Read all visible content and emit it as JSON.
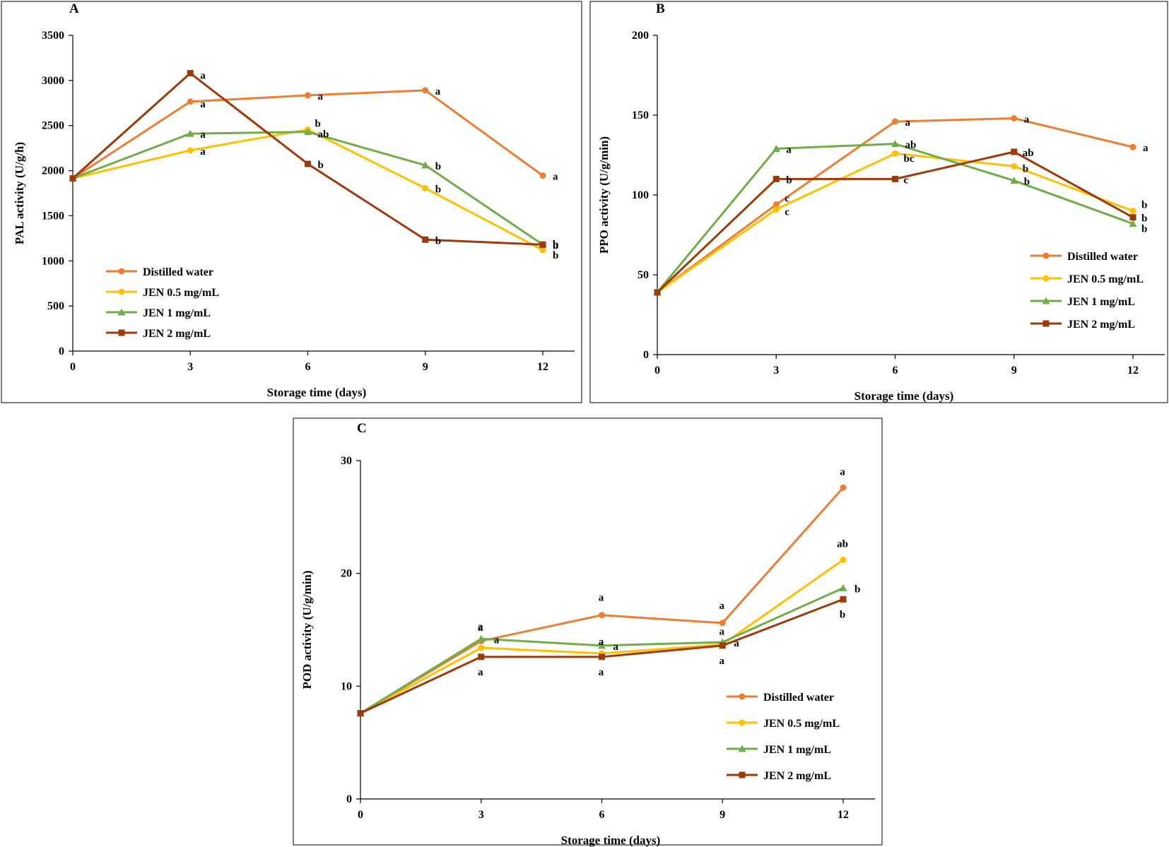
{
  "series_styles": [
    {
      "name": "Distilled water",
      "color": "#ED7D31",
      "marker": "circle"
    },
    {
      "name": "JEN 0.5 mg/mL",
      "color": "#FFC000",
      "marker": "circle"
    },
    {
      "name": "JEN 1 mg/mL",
      "color": "#70AD47",
      "marker": "triangle"
    },
    {
      "name": "JEN 2 mg/mL",
      "color": "#9E3A0A",
      "marker": "square"
    }
  ],
  "chart_data": [
    {
      "panel": "A",
      "type": "line",
      "xlabel": "Storage time (days)",
      "ylabel": "PAL activity (U/g/h)",
      "x": [
        0,
        3,
        6,
        9,
        12
      ],
      "xticks": [
        "0",
        "3",
        "6",
        "9",
        "12"
      ],
      "ylim": [
        0,
        3500
      ],
      "yticks": [
        "0",
        "500",
        "1000",
        "1500",
        "2000",
        "2500",
        "3000",
        "3500"
      ],
      "legend_position": "bottom-left",
      "series": [
        {
          "name": "Distilled water",
          "values": [
            1915,
            2765,
            2835,
            2890,
            1945
          ],
          "labels": [
            "",
            "a",
            "a",
            "a",
            "a"
          ]
        },
        {
          "name": "JEN 0.5 mg/mL",
          "values": [
            1915,
            2225,
            2455,
            1805,
            1120
          ],
          "labels": [
            "",
            "a",
            "b",
            "b",
            "b"
          ]
        },
        {
          "name": "JEN 1 mg/mL",
          "values": [
            1915,
            2410,
            2430,
            2060,
            1180
          ],
          "labels": [
            "",
            "a",
            "ab",
            "b",
            "b"
          ]
        },
        {
          "name": "JEN 2 mg/mL",
          "values": [
            1915,
            3080,
            2075,
            1235,
            1180
          ],
          "labels": [
            "",
            "a",
            "b",
            "b",
            "b"
          ]
        }
      ]
    },
    {
      "panel": "B",
      "type": "line",
      "xlabel": "Storage time (days)",
      "ylabel": "PPO activity (U/g/min)",
      "x": [
        0,
        3,
        6,
        9,
        12
      ],
      "xticks": [
        "0",
        "3",
        "6",
        "9",
        "12"
      ],
      "ylim": [
        0,
        200
      ],
      "yticks": [
        "0",
        "50",
        "100",
        "150",
        "200"
      ],
      "legend_position": "bottom-right",
      "series": [
        {
          "name": "Distilled water",
          "values": [
            39,
            94,
            146,
            148,
            130
          ],
          "labels": [
            "",
            "c",
            "a",
            "a",
            "a"
          ]
        },
        {
          "name": "JEN 0.5 mg/mL",
          "values": [
            39,
            91,
            126,
            118,
            90
          ],
          "labels": [
            "",
            "c",
            "bc",
            "b",
            "b"
          ]
        },
        {
          "name": "JEN 1 mg/mL",
          "values": [
            39,
            129,
            132,
            109,
            82
          ],
          "labels": [
            "",
            "a",
            "ab",
            "b",
            "b"
          ]
        },
        {
          "name": "JEN 2 mg/mL",
          "values": [
            39,
            110,
            110,
            127,
            86
          ],
          "labels": [
            "",
            "b",
            "c",
            "ab",
            "b"
          ]
        }
      ]
    },
    {
      "panel": "C",
      "type": "line",
      "xlabel": "Storage time (days)",
      "ylabel": "POD activity (U/g/min)",
      "x": [
        0,
        3,
        6,
        9,
        12
      ],
      "xticks": [
        "0",
        "3",
        "6",
        "9",
        "12"
      ],
      "ylim": [
        0,
        30
      ],
      "yticks": [
        "0",
        "10",
        "20",
        "30"
      ],
      "legend_position": "bottom-right",
      "series": [
        {
          "name": "Distilled water",
          "values": [
            7.6,
            14.0,
            16.3,
            15.6,
            27.6
          ],
          "labels": [
            "",
            "a",
            "a",
            "a",
            "a"
          ]
        },
        {
          "name": "JEN 0.5 mg/mL",
          "values": [
            7.6,
            13.4,
            12.9,
            13.7,
            21.2
          ],
          "labels": [
            "",
            "a",
            "a",
            "a",
            "ab"
          ]
        },
        {
          "name": "JEN 1 mg/mL",
          "values": [
            7.6,
            14.2,
            13.6,
            13.9,
            18.7
          ],
          "labels": [
            "",
            "a",
            "a",
            "a",
            "b"
          ]
        },
        {
          "name": "JEN 2 mg/mL",
          "values": [
            7.6,
            12.6,
            12.6,
            13.6,
            17.7
          ],
          "labels": [
            "",
            "a",
            "a",
            "a",
            "b"
          ]
        }
      ]
    }
  ]
}
